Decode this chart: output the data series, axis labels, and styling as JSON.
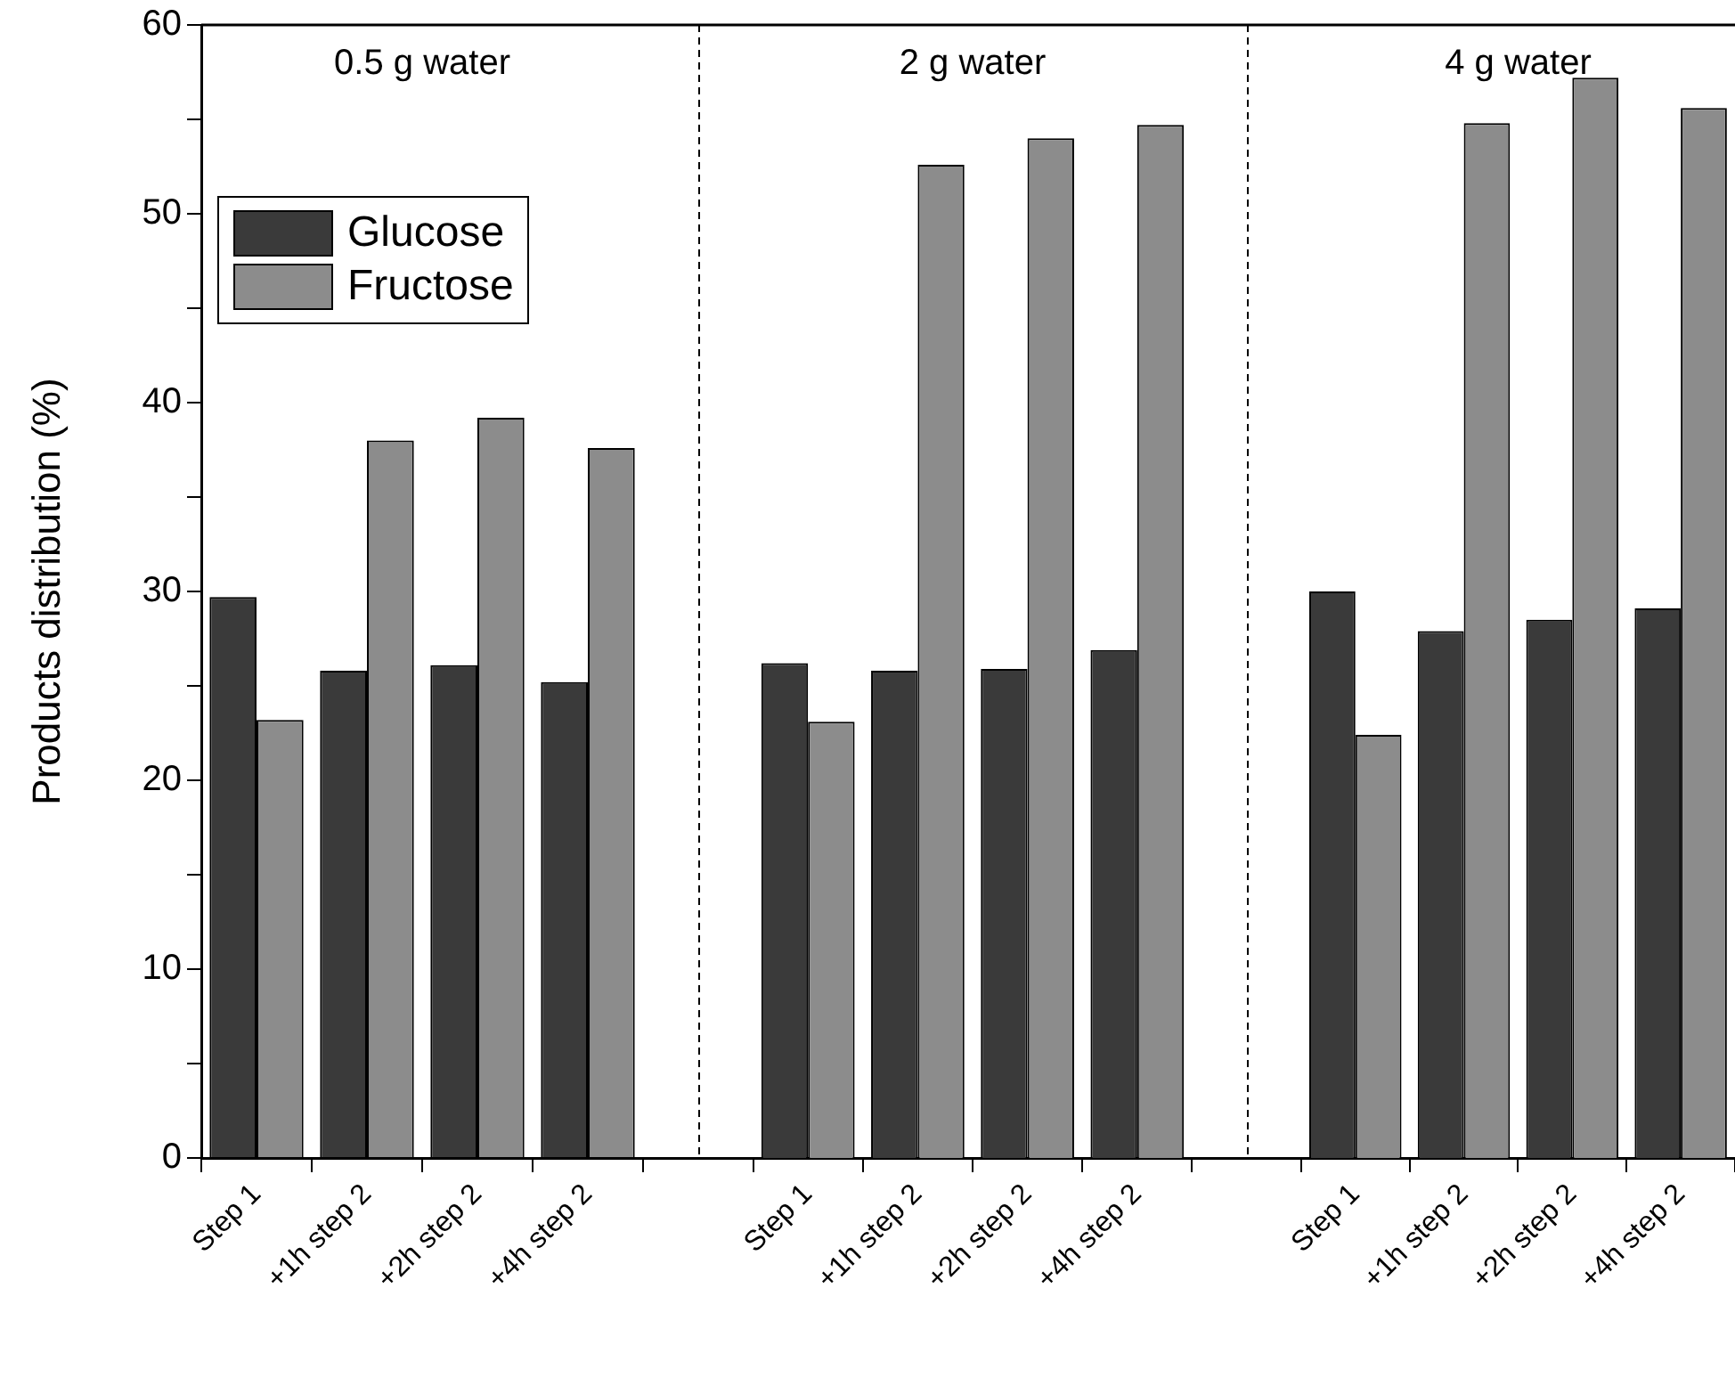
{
  "chart_data": [
    {
      "type": "bar",
      "title": "0.5 g water",
      "ylabel": "Products distribution (%)",
      "categories": [
        "Step 1",
        "+1h step 2",
        "+2h step 2",
        "+4h step 2"
      ],
      "series": [
        {
          "name": "Glucose",
          "color": "#3a3a3a",
          "values": [
            29.7,
            25.8,
            26.1,
            25.2
          ]
        },
        {
          "name": "Fructose",
          "color": "#8c8c8c",
          "values": [
            23.2,
            38.0,
            39.2,
            37.6
          ]
        }
      ],
      "ylim": [
        0,
        60
      ],
      "yticks": [
        0,
        {
          "value": 5,
          "label": null
        },
        10,
        {
          "value": 15,
          "label": null
        },
        20,
        {
          "value": 25,
          "label": null
        },
        30,
        {
          "value": 35,
          "label": null
        },
        40,
        {
          "value": 45,
          "label": null
        },
        50,
        {
          "value": 55,
          "label": null
        },
        60
      ],
      "legend": "top left",
      "grid": false
    },
    {
      "type": "bar",
      "title": "2 g water",
      "categories": [
        "Step 1",
        "+1h step 2",
        "+2h step 2",
        "+4h step 2"
      ],
      "series": [
        {
          "color": "#3a3a3a",
          "values": [
            26.2,
            25.8,
            25.9,
            26.9
          ]
        },
        {
          "color": "#8c8c8c",
          "values": [
            23.1,
            52.6,
            54.0,
            54.7
          ]
        }
      ],
      "ylim": [
        0,
        60
      ],
      "tick_labels": "x",
      "grid": false
    },
    {
      "type": "bar",
      "title": "4 g water",
      "categories": [
        "Step 1",
        "+1h step 2",
        "+2h step 2",
        "+4h step 2"
      ],
      "series": [
        {
          "color": "#3a3a3a",
          "values": [
            30.0,
            27.9,
            28.5,
            29.1
          ]
        },
        {
          "color": "#8c8c8c",
          "values": [
            22.4,
            54.8,
            57.2,
            55.6
          ]
        }
      ],
      "ylim": [
        0,
        60
      ],
      "tick_labels": "x",
      "grid": false
    }
  ]
}
